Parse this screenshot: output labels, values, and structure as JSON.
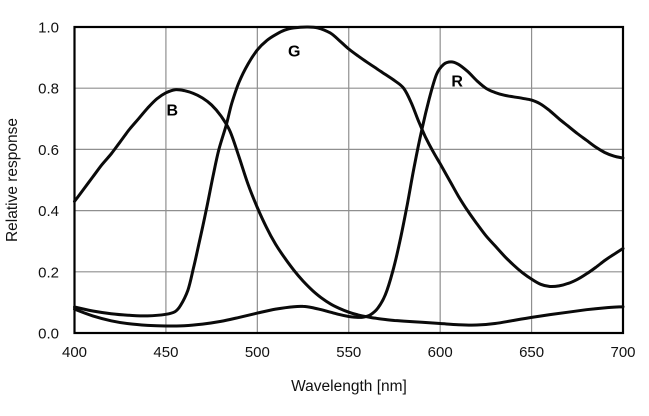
{
  "figure": {
    "background": "#ffffff"
  },
  "chart_data": {
    "type": "line",
    "title": "",
    "xlabel": "Wavelength [nm]",
    "ylabel": "Relative response",
    "xlim": [
      400,
      700
    ],
    "ylim": [
      0.0,
      1.0
    ],
    "x_ticks": [
      "400",
      "450",
      "500",
      "550",
      "600",
      "650",
      "700"
    ],
    "y_ticks": [
      "0.0",
      "0.2",
      "0.4",
      "0.6",
      "0.8",
      "1.0"
    ],
    "grid": true,
    "legend_position": "inline-curve-labels",
    "styles": {
      "line_color": "#0a0a0a",
      "grid_color": "#8f8f8f",
      "frame_color": "#000000",
      "text_color": "#111111",
      "line_width": 3
    },
    "series": [
      {
        "name": "B",
        "label": "B",
        "label_at": {
          "wavelength": 453.5,
          "response": 0.728
        },
        "points": [
          [
            400,
            0.43
          ],
          [
            405,
            0.47
          ],
          [
            410,
            0.51
          ],
          [
            415,
            0.55
          ],
          [
            420,
            0.585
          ],
          [
            425,
            0.625
          ],
          [
            430,
            0.665
          ],
          [
            435,
            0.7
          ],
          [
            440,
            0.735
          ],
          [
            445,
            0.765
          ],
          [
            450,
            0.785
          ],
          [
            455,
            0.795
          ],
          [
            460,
            0.792
          ],
          [
            465,
            0.783
          ],
          [
            470,
            0.768
          ],
          [
            475,
            0.745
          ],
          [
            480,
            0.71
          ],
          [
            485,
            0.66
          ],
          [
            490,
            0.575
          ],
          [
            495,
            0.485
          ],
          [
            500,
            0.41
          ],
          [
            505,
            0.345
          ],
          [
            510,
            0.29
          ],
          [
            515,
            0.245
          ],
          [
            520,
            0.205
          ],
          [
            525,
            0.17
          ],
          [
            530,
            0.14
          ],
          [
            535,
            0.115
          ],
          [
            540,
            0.095
          ],
          [
            545,
            0.08
          ],
          [
            550,
            0.068
          ],
          [
            555,
            0.059
          ],
          [
            560,
            0.053
          ],
          [
            565,
            0.048
          ],
          [
            570,
            0.044
          ],
          [
            575,
            0.041
          ],
          [
            580,
            0.039
          ],
          [
            590,
            0.035
          ],
          [
            600,
            0.031
          ],
          [
            610,
            0.027
          ],
          [
            620,
            0.026
          ],
          [
            630,
            0.031
          ],
          [
            640,
            0.041
          ],
          [
            650,
            0.051
          ],
          [
            660,
            0.06
          ],
          [
            670,
            0.068
          ],
          [
            680,
            0.076
          ],
          [
            690,
            0.082
          ],
          [
            700,
            0.086
          ]
        ]
      },
      {
        "name": "G",
        "label": "G",
        "label_at": {
          "wavelength": 520.2,
          "response": 0.922
        },
        "points": [
          [
            400,
            0.085
          ],
          [
            410,
            0.072
          ],
          [
            420,
            0.063
          ],
          [
            430,
            0.058
          ],
          [
            440,
            0.056
          ],
          [
            450,
            0.061
          ],
          [
            455,
            0.07
          ],
          [
            458,
            0.09
          ],
          [
            462,
            0.14
          ],
          [
            465,
            0.21
          ],
          [
            468,
            0.29
          ],
          [
            472,
            0.4
          ],
          [
            476,
            0.52
          ],
          [
            479,
            0.6
          ],
          [
            483,
            0.68
          ],
          [
            486,
            0.75
          ],
          [
            490,
            0.82
          ],
          [
            495,
            0.88
          ],
          [
            500,
            0.925
          ],
          [
            505,
            0.955
          ],
          [
            510,
            0.975
          ],
          [
            515,
            0.99
          ],
          [
            520,
            0.997
          ],
          [
            527,
            1.0
          ],
          [
            533,
            0.997
          ],
          [
            540,
            0.98
          ],
          [
            545,
            0.955
          ],
          [
            550,
            0.928
          ],
          [
            555,
            0.906
          ],
          [
            560,
            0.885
          ],
          [
            565,
            0.865
          ],
          [
            570,
            0.845
          ],
          [
            575,
            0.825
          ],
          [
            580,
            0.8
          ],
          [
            584,
            0.755
          ],
          [
            588,
            0.695
          ],
          [
            592,
            0.64
          ],
          [
            596,
            0.594
          ],
          [
            600,
            0.553
          ],
          [
            605,
            0.5
          ],
          [
            610,
            0.447
          ],
          [
            615,
            0.4
          ],
          [
            620,
            0.358
          ],
          [
            625,
            0.318
          ],
          [
            630,
            0.285
          ],
          [
            635,
            0.252
          ],
          [
            640,
            0.223
          ],
          [
            645,
            0.197
          ],
          [
            650,
            0.176
          ],
          [
            655,
            0.159
          ],
          [
            660,
            0.152
          ],
          [
            665,
            0.154
          ],
          [
            670,
            0.162
          ],
          [
            675,
            0.175
          ],
          [
            680,
            0.193
          ],
          [
            685,
            0.214
          ],
          [
            690,
            0.237
          ],
          [
            695,
            0.257
          ],
          [
            700,
            0.276
          ]
        ]
      },
      {
        "name": "R",
        "label": "R",
        "label_at": {
          "wavelength": 609.3,
          "response": 0.824
        },
        "points": [
          [
            400,
            0.078
          ],
          [
            410,
            0.056
          ],
          [
            420,
            0.04
          ],
          [
            430,
            0.03
          ],
          [
            440,
            0.025
          ],
          [
            450,
            0.023
          ],
          [
            460,
            0.024
          ],
          [
            470,
            0.029
          ],
          [
            480,
            0.038
          ],
          [
            490,
            0.051
          ],
          [
            500,
            0.065
          ],
          [
            510,
            0.078
          ],
          [
            520,
            0.086
          ],
          [
            525,
            0.087
          ],
          [
            530,
            0.083
          ],
          [
            535,
            0.076
          ],
          [
            540,
            0.068
          ],
          [
            545,
            0.06
          ],
          [
            550,
            0.054
          ],
          [
            555,
            0.051
          ],
          [
            558,
            0.052
          ],
          [
            562,
            0.06
          ],
          [
            566,
            0.082
          ],
          [
            570,
            0.125
          ],
          [
            574,
            0.2
          ],
          [
            578,
            0.3
          ],
          [
            582,
            0.42
          ],
          [
            586,
            0.55
          ],
          [
            590,
            0.665
          ],
          [
            594,
            0.765
          ],
          [
            598,
            0.845
          ],
          [
            602,
            0.878
          ],
          [
            606,
            0.886
          ],
          [
            610,
            0.878
          ],
          [
            615,
            0.855
          ],
          [
            620,
            0.825
          ],
          [
            625,
            0.8
          ],
          [
            630,
            0.786
          ],
          [
            635,
            0.777
          ],
          [
            640,
            0.772
          ],
          [
            645,
            0.767
          ],
          [
            650,
            0.761
          ],
          [
            655,
            0.748
          ],
          [
            660,
            0.726
          ],
          [
            665,
            0.7
          ],
          [
            670,
            0.676
          ],
          [
            675,
            0.652
          ],
          [
            680,
            0.63
          ],
          [
            685,
            0.608
          ],
          [
            690,
            0.59
          ],
          [
            695,
            0.578
          ],
          [
            700,
            0.572
          ]
        ]
      }
    ]
  }
}
